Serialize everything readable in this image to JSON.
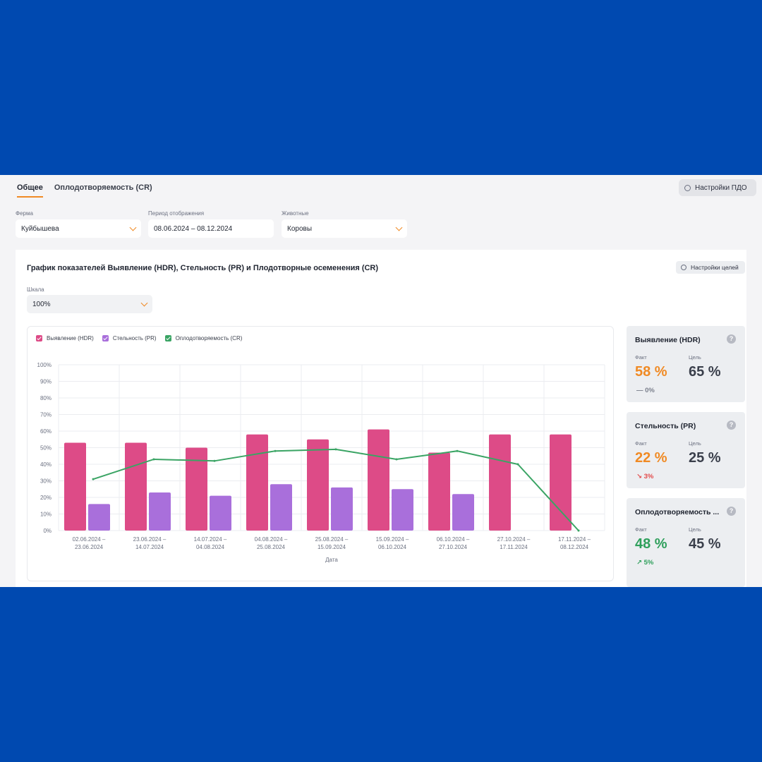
{
  "tabs": [
    {
      "label": "Общее",
      "active": true
    },
    {
      "label": "Оплодотворяемость (CR)",
      "active": false
    }
  ],
  "pdo_button": "Настройки ПДО",
  "filters": {
    "farm": {
      "label": "Ферма",
      "value": "Куйбышева"
    },
    "period": {
      "label": "Период отображения",
      "value": "08.06.2024 – 08.12.2024"
    },
    "animals": {
      "label": "Животные",
      "value": "Коровы"
    }
  },
  "card": {
    "title": "График показателей Выявление (HDR), Стельность (PR) и Плодотворные осеменения (CR)",
    "goals_button": "Настройки целей",
    "scale_label": "Шкала",
    "scale_value": "100%"
  },
  "colors": {
    "hdr": "#dd4b87",
    "pr": "#a96fdb",
    "cr": "#3aa464",
    "orange": "#f08a24",
    "up": "#2e9f5b",
    "down": "#e24a4a"
  },
  "chart_data": {
    "type": "bar",
    "categories": [
      "02.06.2024 – 23.06.2024",
      "23.06.2024 – 14.07.2024",
      "14.07.2024 – 04.08.2024",
      "04.08.2024 – 25.08.2024",
      "25.08.2024 – 15.09.2024",
      "15.09.2024 – 06.10.2024",
      "06.10.2024 – 27.10.2024",
      "27.10.2024 – 17.11.2024",
      "17.11.2024 – 08.12.2024"
    ],
    "series": [
      {
        "name": "Выявление (HDR)",
        "type": "bar",
        "values": [
          53,
          53,
          50,
          58,
          55,
          61,
          47,
          58,
          58
        ]
      },
      {
        "name": "Стельность (PR)",
        "type": "bar",
        "values": [
          16,
          23,
          21,
          28,
          26,
          25,
          22,
          null,
          null
        ]
      },
      {
        "name": "Оплодотворяемость (CR)",
        "type": "line",
        "values": [
          31,
          43,
          42,
          48,
          49,
          43,
          48,
          40,
          0
        ]
      }
    ],
    "y_ticks": [
      "0%",
      "10%",
      "20%",
      "30%",
      "40%",
      "50%",
      "60%",
      "70%",
      "80%",
      "90%",
      "100%"
    ],
    "xlabel": "Дата",
    "ylim": [
      0,
      100
    ],
    "grid": true,
    "legend_position": "top-left"
  },
  "kpis": [
    {
      "title": "Выявление (HDR)",
      "fact_label": "Факт",
      "goal_label": "Цель",
      "fact": "58 %",
      "goal": "65 %",
      "delta": "0%",
      "trend": "flat",
      "fact_color": "#f08a24"
    },
    {
      "title": "Стельность (PR)",
      "fact_label": "Факт",
      "goal_label": "Цель",
      "fact": "22 %",
      "goal": "25 %",
      "delta": "3%",
      "trend": "down",
      "fact_color": "#f08a24"
    },
    {
      "title": "Оплодотворяемость ...",
      "fact_label": "Факт",
      "goal_label": "Цель",
      "fact": "48 %",
      "goal": "45 %",
      "delta": "5%",
      "trend": "up",
      "fact_color": "#2e9f5b"
    }
  ],
  "icons": {
    "gear": "gear-icon",
    "help": "help-icon",
    "chevron": "chevron-down-icon"
  }
}
